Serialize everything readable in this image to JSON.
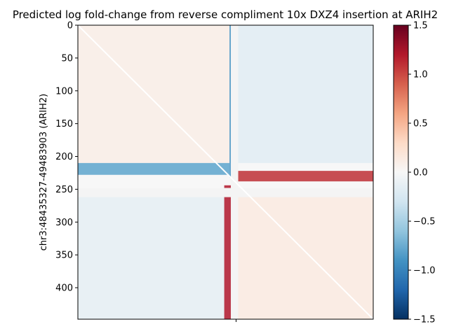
{
  "chart_data": {
    "type": "heatmap",
    "title": "Predicted log fold-change from reverse compliment 10x DXZ4 insertion at ARIH2",
    "ylabel": "chr3:48435327-49483903 (ARIH2)",
    "xlabel": "",
    "matrix_size": 448,
    "insertion_bin": 240,
    "masked_bins": [
      218,
      232
    ],
    "y_ticks": [
      0,
      50,
      100,
      150,
      200,
      250,
      300,
      350,
      400
    ],
    "x_ticks": [
      240
    ],
    "colormap": "RdBu_r",
    "vmin": -1.5,
    "vmax": 1.5,
    "colorbar_ticks": [
      {
        "value": 1.5,
        "label": "1.5"
      },
      {
        "value": 1.0,
        "label": "1.0"
      },
      {
        "value": 0.5,
        "label": "0.5"
      },
      {
        "value": 0.0,
        "label": "0.0"
      },
      {
        "value": -0.5,
        "label": "−0.5"
      },
      {
        "value": -1.0,
        "label": "−1.0"
      },
      {
        "value": -1.5,
        "label": "−1.5"
      }
    ],
    "stripes": {
      "upper_column_value": -0.9,
      "lower_column_value": 1.2,
      "left_row_value": -0.8,
      "right_row_value": 1.1
    },
    "background_blocks": [
      {
        "rows": [
          0,
          210
        ],
        "cols": [
          0,
          240
        ],
        "value": 0.15
      },
      {
        "rows": [
          0,
          210
        ],
        "cols": [
          240,
          448
        ],
        "value": -0.25
      },
      {
        "rows": [
          260,
          448
        ],
        "cols": [
          0,
          240
        ],
        "value": -0.2
      },
      {
        "rows": [
          260,
          448
        ],
        "cols": [
          240,
          448
        ],
        "value": 0.2
      }
    ],
    "grid": false,
    "legend": "none"
  }
}
